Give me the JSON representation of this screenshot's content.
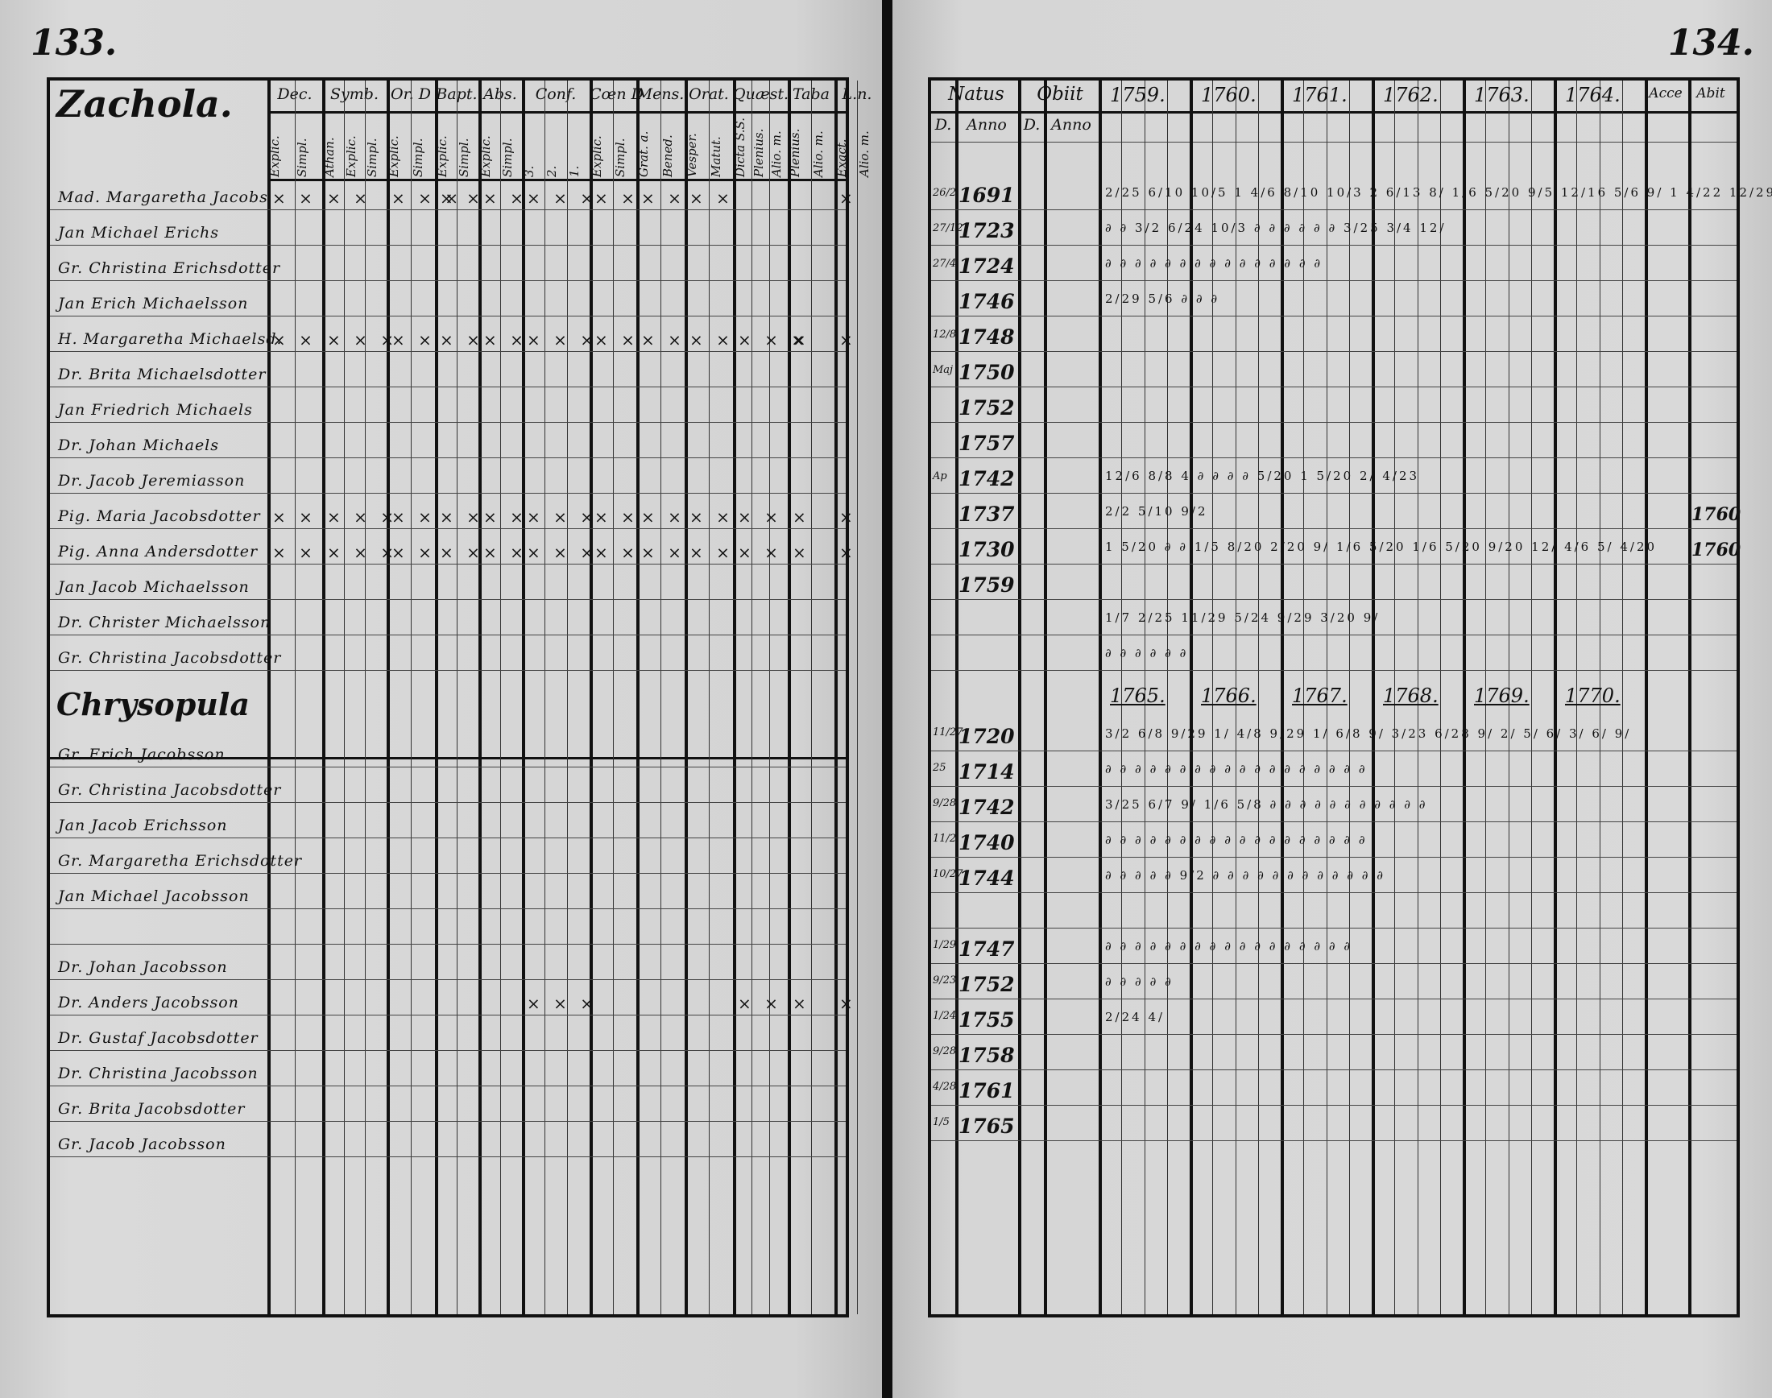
{
  "left_page": {
    "page_number": "133.",
    "columns": [
      {
        "top": "Dec.",
        "subs": [
          "Explic.",
          "Simpl."
        ]
      },
      {
        "top": "Symb.",
        "subs": [
          "Athan.",
          "Explic.",
          "Simpl."
        ]
      },
      {
        "top": "Or. D",
        "subs": [
          "Explic.",
          "Simpl."
        ]
      },
      {
        "top": "Bapt.",
        "subs": [
          "Explic.",
          "Simpl."
        ]
      },
      {
        "top": "Abs.",
        "subs": [
          "Explic.",
          "Simpl."
        ]
      },
      {
        "top": "Conf.",
        "subs": [
          "3.",
          "2.",
          "1."
        ]
      },
      {
        "top": "Cœn D",
        "subs": [
          "Explic.",
          "Simpl."
        ]
      },
      {
        "top": "Mens.",
        "subs": [
          "Grat. a.",
          "Bened."
        ]
      },
      {
        "top": "Orat.",
        "subs": [
          "Vesper.",
          "Matut."
        ]
      },
      {
        "top": "Quæst.",
        "subs": [
          "Dicta S.S.",
          "Plenius.",
          "Alio. m."
        ]
      },
      {
        "top": "Taba",
        "subs": [
          "Plenius.",
          "Alio. m."
        ]
      },
      {
        "top": "L.n.",
        "subs": [
          "Exact.",
          "Alio. m."
        ]
      }
    ],
    "sections": [
      {
        "title": "Zachola.",
        "rows": [
          {
            "name": "Mad. Margaretha Jacobs",
            "marks": [
              "× ×",
              "× ×",
              "× × ×",
              "× ×",
              "× ×",
              "× × ×",
              "× ×",
              "× ×",
              "× ×",
              "",
              "",
              "×"
            ]
          },
          {
            "name": "Jan Michael Erichs",
            "marks": []
          },
          {
            "name": "Gr. Christina Erichsdotter",
            "marks": []
          },
          {
            "name": "Jan Erich Michaelsson",
            "marks": []
          },
          {
            "name": "H. Margaretha Michaelsd.",
            "marks": [
              "× ×",
              "× × ×",
              "× ×",
              "× ×",
              "× ×",
              "× × ×",
              "× ×",
              "× ×",
              "× ×",
              "× × ×",
              "×",
              "×"
            ]
          },
          {
            "name": "Dr. Brita Michaelsdotter",
            "marks": []
          },
          {
            "name": "Jan Friedrich Michaels",
            "marks": []
          },
          {
            "name": "Dr. Johan Michaels",
            "marks": []
          },
          {
            "name": "Dr. Jacob Jeremiasson",
            "marks": []
          },
          {
            "name": "Pig. Maria Jacobsdotter",
            "marks": [
              "× ×",
              "× × ×",
              "× ×",
              "× ×",
              "× ×",
              "× × ×",
              "× ×",
              "× ×",
              "× ×",
              "× ×",
              "×",
              "×"
            ]
          },
          {
            "name": "Pig. Anna Andersdotter",
            "marks": [
              "× ×",
              "× × ×",
              "× ×",
              "× ×",
              "× ×",
              "× × ×",
              "× ×",
              "× ×",
              "× ×",
              "× ×",
              "×",
              "×"
            ]
          },
          {
            "name": "Jan Jacob Michaelsson",
            "marks": []
          },
          {
            "name": "Dr. Christer Michaelsson",
            "marks": []
          },
          {
            "name": "Gr. Christina Jacobsdotter",
            "marks": []
          }
        ]
      },
      {
        "title": "Chrysopula",
        "rows": [
          {
            "name": "Gr. Erich Jacobsson",
            "marks": []
          },
          {
            "name": "Gr. Christina Jacobsdotter",
            "marks": []
          },
          {
            "name": "Jan Jacob Erichsson",
            "marks": []
          },
          {
            "name": "Gr. Margaretha Erichsdotter",
            "marks": []
          },
          {
            "name": "Jan Michael Jacobsson",
            "marks": []
          },
          {
            "name": "",
            "marks": []
          },
          {
            "name": "Dr. Johan Jacobsson",
            "marks": []
          },
          {
            "name": "Dr. Anders Jacobsson",
            "marks": [
              "",
              "",
              "",
              "",
              "",
              "× × ×",
              "",
              "",
              "",
              "× ×",
              "×",
              "×"
            ]
          },
          {
            "name": "Dr. Gustaf Jacobsdotter",
            "marks": []
          },
          {
            "name": "Dr. Christina Jacobsson",
            "marks": []
          },
          {
            "name": "Gr. Brita Jacobsdotter",
            "marks": []
          },
          {
            "name": "Gr. Jacob Jacobsson",
            "marks": []
          }
        ]
      }
    ]
  },
  "right_page": {
    "page_number": "134.",
    "headers": {
      "natus": "Natus",
      "obiit": "Obiit",
      "natus_sub": [
        "D.",
        "Anno"
      ],
      "obiit_sub": [
        "D.",
        "Anno"
      ],
      "acce": "Acce",
      "abit": "Abit"
    },
    "years_top": [
      "1759.",
      "1760.",
      "1761.",
      "1762.",
      "1763.",
      "1764."
    ],
    "years_mid": [
      "1765.",
      "1766.",
      "1767.",
      "1768.",
      "1769.",
      "1770."
    ],
    "rows_top": [
      {
        "day": "26/2",
        "year": "1691",
        "marks": "2/25  6/10  10/5  1  4/6  8/10  10/3  2  6/13  8/  1/6  5/20  9/5  12/16  5/6  9/  1  4/22  12/29",
        "abit": ""
      },
      {
        "day": "27/12",
        "year": "1723",
        "marks": "∂ ∂  3/2  6/24  10/3  ∂ ∂ ∂  ∂ ∂ ∂  3/25  3/4  12/",
        "abit": ""
      },
      {
        "day": "27/4",
        "year": "1724",
        "marks": "∂ ∂ ∂ ∂ ∂ ∂ ∂ ∂ ∂ ∂ ∂ ∂ ∂ ∂ ∂",
        "abit": ""
      },
      {
        "day": "",
        "year": "1746",
        "marks": "2/29  5/6  ∂ ∂ ∂",
        "abit": ""
      },
      {
        "day": "12/8",
        "year": "1748",
        "marks": "",
        "abit": ""
      },
      {
        "day": "Maj",
        "year": "1750",
        "marks": "",
        "abit": ""
      },
      {
        "day": "",
        "year": "1752",
        "marks": "",
        "abit": ""
      },
      {
        "day": "",
        "year": "1757",
        "marks": "",
        "abit": ""
      },
      {
        "day": "Ap",
        "year": "1742",
        "marks": "12/6  8/8  4  ∂ ∂  ∂ ∂  5/20  1  5/20  2/  4/23",
        "abit": ""
      },
      {
        "day": "",
        "year": "1737",
        "marks": "2/2  5/10  9/2",
        "abit": "1760"
      },
      {
        "day": "",
        "year": "1730",
        "marks": "1  5/20  ∂ ∂  1/5  8/20  2/20  9/  1/6  5/20  1/6  5/20  9/20  12/  4/6  5/  4/20",
        "abit": "1760"
      },
      {
        "day": "",
        "year": "1759",
        "marks": "",
        "abit": ""
      },
      {
        "day": "",
        "year": "",
        "marks": "1/7  2/25  11/29  5/24  9/29  3/20  9/",
        "abit": ""
      },
      {
        "day": "",
        "year": "",
        "marks": "∂ ∂ ∂  ∂  ∂  ∂",
        "abit": ""
      }
    ],
    "rows_mid": [
      {
        "day": "11/27",
        "year": "1720",
        "marks": "3/2  6/8  9/29  1/  4/8  9/29  1/  6/8  9/  3/23  6/28  9/  2/  5/  6/  3/  6/  9/"
      },
      {
        "day": "25",
        "year": "1714",
        "marks": "∂ ∂ ∂ ∂ ∂ ∂ ∂ ∂ ∂ ∂ ∂ ∂ ∂ ∂ ∂ ∂ ∂ ∂"
      },
      {
        "day": "9/28",
        "year": "1742",
        "marks": "3/25  6/7  9/  1/6  5/8  ∂ ∂ ∂ ∂ ∂ ∂ ∂ ∂ ∂ ∂ ∂"
      },
      {
        "day": "11/2",
        "year": "1740",
        "marks": "∂ ∂ ∂ ∂ ∂ ∂ ∂ ∂ ∂ ∂ ∂ ∂ ∂ ∂ ∂ ∂ ∂ ∂"
      },
      {
        "day": "10/27",
        "year": "1744",
        "marks": "∂ ∂ ∂  ∂ ∂  9/2  ∂ ∂ ∂ ∂ ∂ ∂ ∂ ∂ ∂ ∂ ∂ ∂"
      },
      {
        "day": "",
        "year": "",
        "marks": ""
      },
      {
        "day": "1/29",
        "year": "1747",
        "marks": "∂ ∂ ∂ ∂ ∂ ∂ ∂ ∂ ∂ ∂ ∂ ∂ ∂ ∂ ∂ ∂ ∂"
      },
      {
        "day": "9/23",
        "year": "1752",
        "marks": "∂ ∂ ∂ ∂ ∂"
      },
      {
        "day": "1/24",
        "year": "1755",
        "marks": "2/24  4/"
      },
      {
        "day": "9/28",
        "year": "1758",
        "marks": ""
      },
      {
        "day": "4/28",
        "year": "1761",
        "marks": ""
      },
      {
        "day": "1/5",
        "year": "1765",
        "marks": ""
      }
    ]
  }
}
